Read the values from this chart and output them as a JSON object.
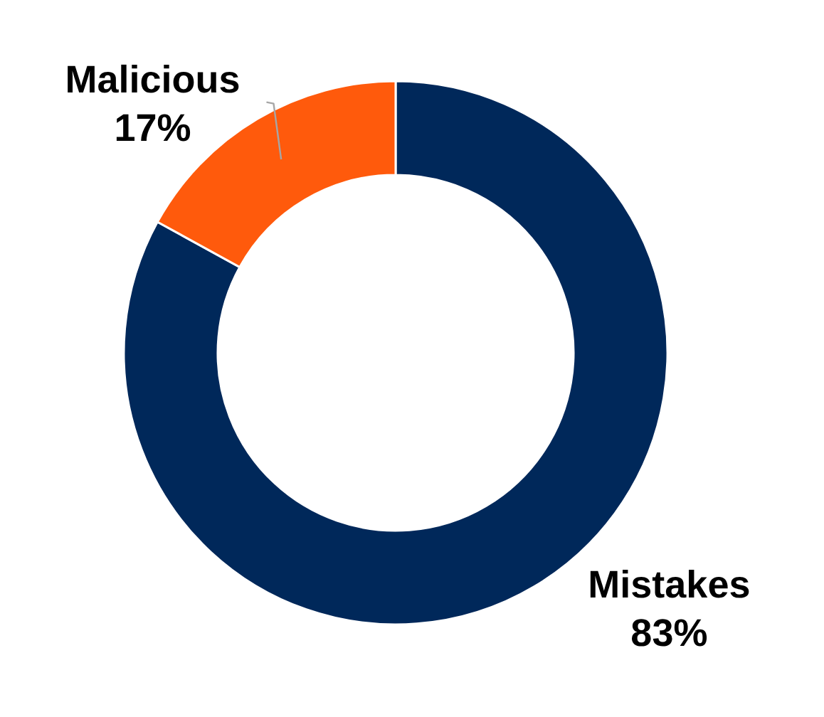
{
  "chart_data": {
    "type": "donut",
    "categories": [
      "Mistakes",
      "Malicious"
    ],
    "values": [
      83,
      17
    ],
    "colors": [
      "#00285a",
      "#ff5a0c"
    ],
    "value_labels": [
      "83%",
      "17%"
    ]
  }
}
